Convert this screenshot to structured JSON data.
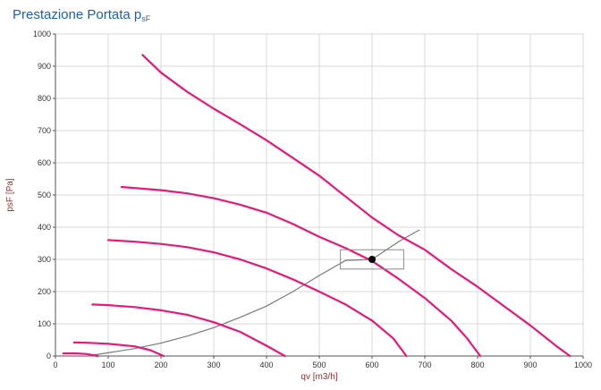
{
  "title": {
    "main": "Prestazione Portata p",
    "subscript": "sF"
  },
  "chart_data": {
    "type": "line",
    "title": "Prestazione Portata psF",
    "xlabel": "qv [m3/h]",
    "ylabel": "psF [Pa]",
    "xlim": [
      0,
      1000
    ],
    "ylim": [
      0,
      1000
    ],
    "xticks": [
      0,
      100,
      200,
      300,
      400,
      500,
      600,
      700,
      800,
      900,
      1000
    ],
    "yticks": [
      0,
      100,
      200,
      300,
      400,
      500,
      600,
      700,
      800,
      900,
      1000
    ],
    "grid": true,
    "colors": {
      "fan_curves": "#e5197a",
      "system_curve": "#7a7a7a",
      "grid": "#d9d9d9",
      "operating_point": "#000000",
      "working_box": "#8a8a8a"
    },
    "fan_curves": [
      {
        "x": [
          165,
          200,
          250,
          300,
          350,
          400,
          450,
          500,
          550,
          600,
          650,
          700,
          750,
          800,
          850,
          900,
          950,
          975
        ],
        "y": [
          935,
          880,
          820,
          768,
          720,
          670,
          615,
          560,
          495,
          430,
          375,
          330,
          270,
          215,
          155,
          95,
          30,
          0
        ]
      },
      {
        "x": [
          125,
          200,
          250,
          300,
          350,
          400,
          450,
          500,
          550,
          600,
          650,
          700,
          750,
          780,
          805
        ],
        "y": [
          525,
          515,
          505,
          490,
          470,
          445,
          410,
          370,
          335,
          295,
          240,
          180,
          110,
          55,
          0
        ]
      },
      {
        "x": [
          100,
          150,
          200,
          250,
          300,
          350,
          400,
          450,
          500,
          550,
          600,
          640,
          665
        ],
        "y": [
          360,
          355,
          348,
          338,
          322,
          300,
          272,
          238,
          200,
          160,
          110,
          55,
          0
        ]
      },
      {
        "x": [
          70,
          100,
          150,
          200,
          250,
          300,
          350,
          400,
          435
        ],
        "y": [
          160,
          158,
          152,
          142,
          128,
          105,
          75,
          32,
          0
        ]
      },
      {
        "x": [
          35,
          60,
          100,
          150,
          180,
          205
        ],
        "y": [
          42,
          41,
          38,
          30,
          18,
          0
        ]
      },
      {
        "x": [
          15,
          40,
          60,
          80
        ],
        "y": [
          8,
          8,
          6,
          0
        ]
      }
    ],
    "system_curve": {
      "x": [
        60,
        100,
        150,
        200,
        250,
        300,
        350,
        400,
        450,
        500,
        550,
        600,
        650,
        690
      ],
      "y": [
        0,
        10,
        23,
        40,
        62,
        88,
        120,
        155,
        200,
        250,
        297,
        300,
        355,
        392
      ]
    },
    "operating_point": {
      "x": 600,
      "y": 300
    },
    "working_box": {
      "x": [
        540,
        660
      ],
      "y": [
        270,
        330
      ]
    }
  }
}
